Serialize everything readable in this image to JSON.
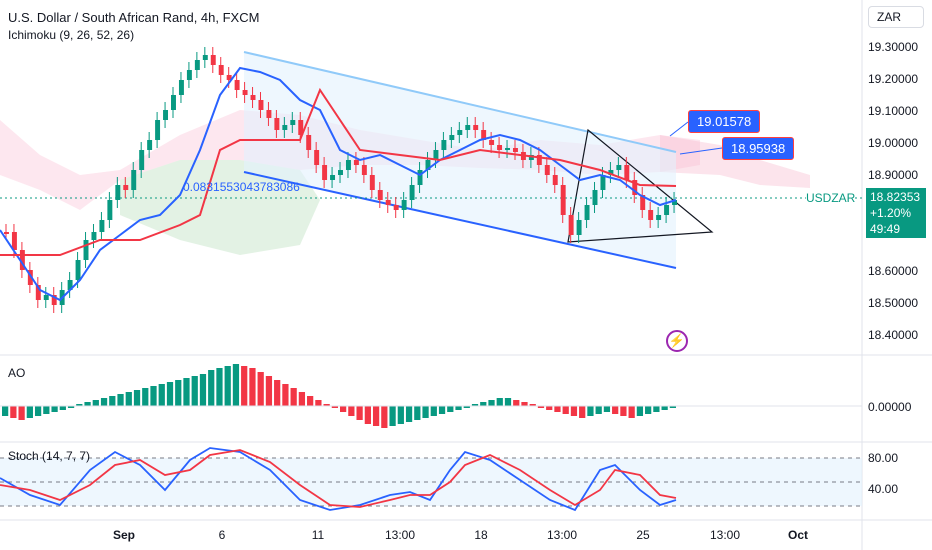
{
  "header": {
    "title": "U.S. Dollar / South African Rand, 4h, FXCM",
    "indicator": "Ichimoku (9, 26, 52, 26)",
    "currency": "ZAR"
  },
  "price_axis": [
    "19.30000",
    "19.20000",
    "19.10000",
    "19.00000",
    "18.90000",
    "18.82353",
    "18.60000",
    "18.50000",
    "18.40000"
  ],
  "price_axis_main": [
    "19.30000",
    "19.20000",
    "19.10000",
    "19.00000",
    "18.90000",
    "18.60000",
    "18.50000",
    "18.40000"
  ],
  "current": {
    "symbol": "USDZAR",
    "price": "18.82353",
    "change": "+1.20%",
    "countdown": "49:49"
  },
  "callouts": {
    "upper": "19.01578",
    "lower": "18.95938"
  },
  "fib_label": "0.0831553043783086",
  "ao": {
    "label": "AO",
    "value": "0.00000"
  },
  "stoch": {
    "label": "Stoch (14, 7, 7)",
    "upper": "80.00",
    "lower": "40.00"
  },
  "time_axis": [
    "Sep",
    "6",
    "11",
    "13:00",
    "18",
    "13:00",
    "25",
    "13:00",
    "Oct"
  ],
  "colors": {
    "up": "#089981",
    "down": "#f23645",
    "blue": "#2962ff",
    "red": "#f23645",
    "cloud_green": "#c8e6c9",
    "cloud_red": "#ffcdd2"
  }
}
